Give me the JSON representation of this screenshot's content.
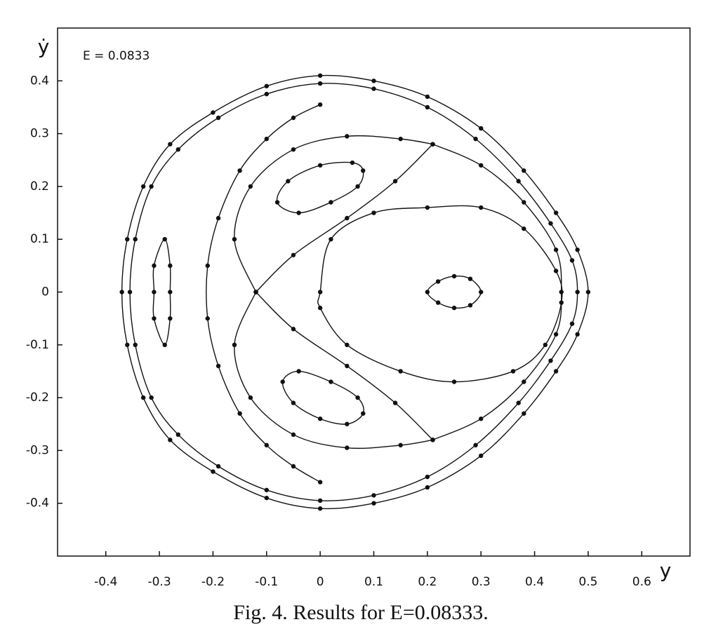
{
  "chart_data": {
    "type": "scatter",
    "annotation": "E = 0.0833",
    "xlabel": "y",
    "ylabel": "ẏ",
    "caption": "Fig. 4. Results for E=0.08333.",
    "xlim": [
      -0.49,
      0.69
    ],
    "ylim": [
      -0.5,
      0.5
    ],
    "xticks": [
      -0.4,
      -0.3,
      -0.2,
      -0.1,
      0,
      0.1,
      0.2,
      0.3,
      0.4,
      0.5,
      0.6
    ],
    "yticks": [
      -0.4,
      -0.3,
      -0.2,
      -0.1,
      0,
      0.1,
      0.2,
      0.3,
      0.4
    ],
    "color": "#111111",
    "series": [
      {
        "closed": true,
        "x": [
          -0.37,
          -0.36,
          -0.33,
          -0.28,
          -0.2,
          -0.1,
          0,
          0.1,
          0.2,
          0.3,
          0.38,
          0.44,
          0.48,
          0.5,
          0.48,
          0.44,
          0.38,
          0.3,
          0.2,
          0.1,
          0,
          -0.1,
          -0.2,
          -0.28,
          -0.33,
          -0.36
        ],
        "y": [
          0,
          0.1,
          0.2,
          0.28,
          0.34,
          0.39,
          0.41,
          0.4,
          0.37,
          0.31,
          0.23,
          0.15,
          0.08,
          0,
          -0.08,
          -0.15,
          -0.23,
          -0.31,
          -0.37,
          -0.4,
          -0.41,
          -0.39,
          -0.34,
          -0.28,
          -0.2,
          -0.1
        ]
      },
      {
        "closed": true,
        "x": [
          -0.355,
          -0.345,
          -0.315,
          -0.265,
          -0.19,
          -0.1,
          0,
          0.1,
          0.2,
          0.29,
          0.37,
          0.43,
          0.47,
          0.48,
          0.47,
          0.43,
          0.37,
          0.29,
          0.2,
          0.1,
          0,
          -0.1,
          -0.19,
          -0.265,
          -0.315,
          -0.345
        ],
        "y": [
          0,
          0.1,
          0.2,
          0.27,
          0.33,
          0.375,
          0.395,
          0.385,
          0.35,
          0.29,
          0.21,
          0.13,
          0.06,
          0,
          -0.06,
          -0.13,
          -0.21,
          -0.29,
          -0.35,
          -0.385,
          -0.395,
          -0.375,
          -0.33,
          -0.27,
          -0.2,
          -0.1
        ]
      },
      {
        "closed": true,
        "x": [
          -0.29,
          -0.28,
          -0.28,
          -0.28,
          -0.29,
          -0.31,
          -0.31,
          -0.31
        ],
        "y": [
          0.1,
          0.05,
          0,
          -0.05,
          -0.1,
          -0.05,
          0,
          0.05
        ]
      },
      {
        "closed": true,
        "x": [
          0.2,
          0.22,
          0.25,
          0.28,
          0.3,
          0.28,
          0.25,
          0.22
        ],
        "y": [
          0,
          0.02,
          0.03,
          0.025,
          0,
          -0.025,
          -0.03,
          -0.02
        ]
      },
      {
        "closed": true,
        "x": [
          0,
          0.02,
          0.1,
          0.2,
          0.3,
          0.38,
          0.44,
          0.45,
          0.42,
          0.36,
          0.25,
          0.15,
          0.05,
          0
        ],
        "y": [
          0,
          0.1,
          0.15,
          0.16,
          0.16,
          0.12,
          0.04,
          -0.02,
          -0.1,
          -0.15,
          -0.17,
          -0.15,
          -0.1,
          -0.03
        ]
      },
      {
        "closed": true,
        "x": [
          -0.08,
          -0.06,
          0,
          0.06,
          0.08,
          0.07,
          0.02,
          -0.04
        ],
        "y": [
          0.17,
          0.21,
          0.24,
          0.245,
          0.23,
          0.2,
          0.17,
          0.15
        ]
      },
      {
        "closed": true,
        "x": [
          -0.07,
          -0.04,
          0.02,
          0.07,
          0.08,
          0.05,
          0,
          -0.05
        ],
        "y": [
          -0.17,
          -0.15,
          -0.17,
          -0.2,
          -0.23,
          -0.25,
          -0.24,
          -0.21
        ]
      },
      {
        "closed": false,
        "x": [
          0.21,
          0.3,
          0.38,
          0.44,
          0.45,
          0.44,
          0.38,
          0.3,
          0.21
        ],
        "y": [
          0.28,
          0.24,
          0.17,
          0.08,
          0,
          -0.08,
          -0.17,
          -0.24,
          -0.28
        ]
      },
      {
        "closed": false,
        "x": [
          0,
          -0.05,
          -0.1,
          -0.15,
          -0.19,
          -0.21,
          -0.21,
          -0.19,
          -0.15,
          -0.1,
          -0.05,
          0
        ],
        "y": [
          0.355,
          0.33,
          0.29,
          0.23,
          0.14,
          0.05,
          -0.05,
          -0.14,
          -0.23,
          -0.29,
          -0.33,
          -0.36
        ]
      },
      {
        "closed": false,
        "x": [
          -0.12,
          -0.05,
          0.05,
          0.14,
          0.21
        ],
        "y": [
          0,
          0.07,
          0.14,
          0.21,
          0.28
        ]
      },
      {
        "closed": false,
        "x": [
          -0.12,
          -0.05,
          0.05,
          0.14,
          0.21
        ],
        "y": [
          0,
          -0.07,
          -0.14,
          -0.21,
          -0.28
        ]
      },
      {
        "closed": false,
        "x": [
          -0.12,
          -0.16,
          -0.13,
          -0.05,
          0.05,
          0.15,
          0.21
        ],
        "y": [
          0,
          0.1,
          0.2,
          0.27,
          0.295,
          0.29,
          0.28
        ]
      },
      {
        "closed": false,
        "x": [
          -0.12,
          -0.16,
          -0.13,
          -0.05,
          0.05,
          0.15,
          0.21
        ],
        "y": [
          0,
          -0.1,
          -0.2,
          -0.27,
          -0.295,
          -0.29,
          -0.28
        ]
      }
    ]
  }
}
